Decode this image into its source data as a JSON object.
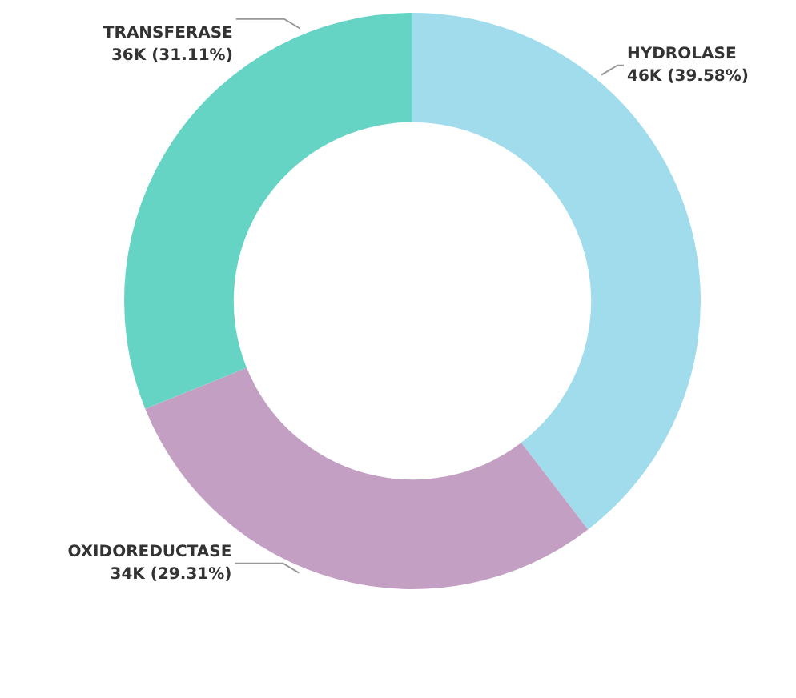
{
  "chart_data": {
    "type": "donut",
    "categories": [
      "HYDROLASE",
      "OXIDOREDUCTASE",
      "TRANSFERASE"
    ],
    "values": [
      39.58,
      29.31,
      31.11
    ],
    "value_labels": [
      "46K (39.58%)",
      "34K (29.31%)",
      "36K (31.11%)"
    ],
    "colors": [
      "#a0dcec",
      "#c39fc4",
      "#66d4c4"
    ],
    "legend": false
  }
}
